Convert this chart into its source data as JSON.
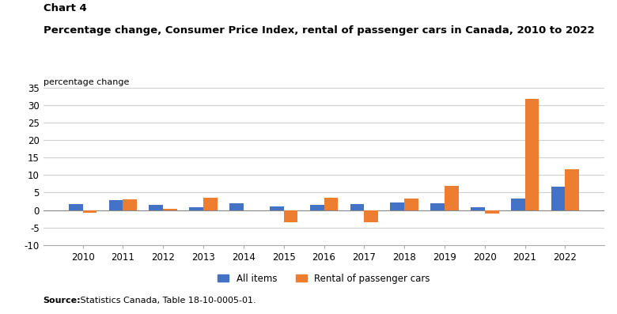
{
  "years": [
    2010,
    2011,
    2012,
    2013,
    2014,
    2015,
    2016,
    2017,
    2018,
    2019,
    2020,
    2021,
    2022
  ],
  "all_items": [
    1.8,
    2.9,
    1.5,
    0.9,
    2.0,
    1.1,
    1.4,
    1.6,
    2.2,
    1.9,
    0.7,
    3.4,
    6.8
  ],
  "rental_cars": [
    -0.8,
    3.0,
    0.3,
    3.5,
    0.0,
    -3.5,
    3.5,
    -3.5,
    3.3,
    7.0,
    -1.0,
    31.8,
    11.7
  ],
  "bar_color_all": "#4472c4",
  "bar_color_rental": "#ed7d31",
  "title_line1": "Chart 4",
  "title_line2": "Percentage change, Consumer Price Index, rental of passenger cars in Canada, 2010 to 2022",
  "ylabel": "percentage change",
  "ylim_min": -10,
  "ylim_max": 35,
  "yticks": [
    -10,
    -5,
    0,
    5,
    10,
    15,
    20,
    25,
    30,
    35
  ],
  "legend_label_all": "All items",
  "legend_label_rental": "Rental of passenger cars",
  "source_bold": "Source:",
  "source_rest": " Statistics Canada, Table 18-10-0005-01.",
  "background_color": "#ffffff",
  "grid_color": "#d0d0d0",
  "bar_width": 0.35
}
